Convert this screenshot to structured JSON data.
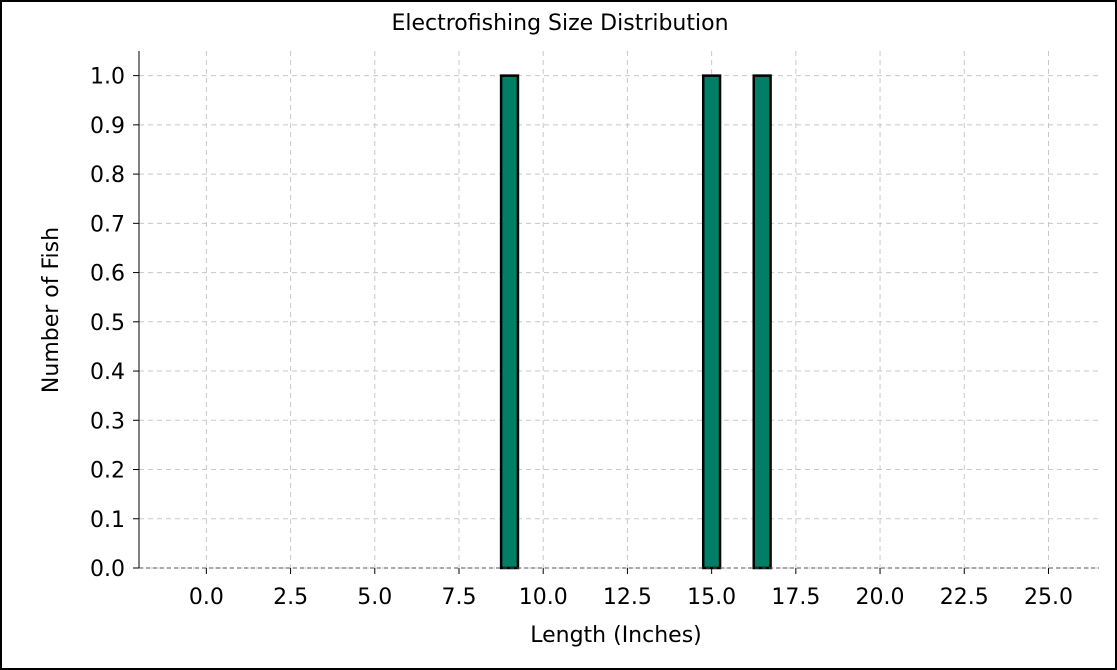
{
  "chart_data": {
    "type": "bar",
    "title": "Electrofishing Size Distribution",
    "xlabel": "Length (Inches)",
    "ylabel": "Number of Fish",
    "xlim": [
      -2.0,
      26.5
    ],
    "ylim": [
      0.0,
      1.05
    ],
    "xticks": [
      "0.0",
      "2.5",
      "5.0",
      "7.5",
      "10.0",
      "12.5",
      "15.0",
      "17.5",
      "20.0",
      "22.5",
      "25.0"
    ],
    "yticks": [
      "0.0",
      "0.1",
      "0.2",
      "0.3",
      "0.4",
      "0.5",
      "0.6",
      "0.7",
      "0.8",
      "0.9",
      "1.0"
    ],
    "grid": true,
    "bar_color": "#007f66",
    "bars": [
      {
        "x": 9.0,
        "value": 1.0
      },
      {
        "x": 15.0,
        "value": 1.0
      },
      {
        "x": 16.5,
        "value": 1.0
      }
    ],
    "bar_width": 0.5
  }
}
